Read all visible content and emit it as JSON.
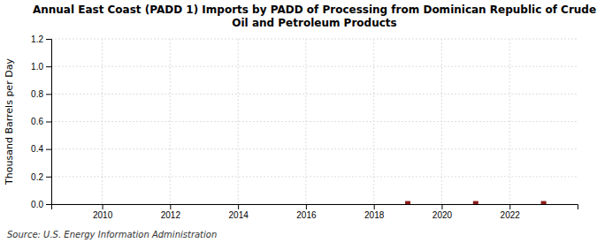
{
  "chart_data": {
    "type": "scatter",
    "title": "Annual East Coast (PADD 1) Imports by PADD of Processing from Dominican Republic of Crude\nOil and Petroleum Products",
    "ylabel": "Thousand Barrels per Day",
    "annotations": [
      "Source: U.S. Energy Information Administration"
    ],
    "x": [
      2019,
      2021,
      2023
    ],
    "values": [
      0.003,
      0.003,
      0.003
    ],
    "color": "#8b1a1a",
    "marker": "square",
    "xlim": [
      2008.5,
      2024.0
    ],
    "xticks": [
      2010,
      2012,
      2014,
      2016,
      2018,
      2020,
      2022
    ],
    "ylim": [
      0,
      1.2
    ],
    "yticks": [
      {
        "value": 0,
        "label": "0.0"
      },
      0.2,
      0.4,
      0.6,
      0.8,
      {
        "value": 1,
        "label": "1.0"
      },
      1.2
    ],
    "grid": true
  }
}
